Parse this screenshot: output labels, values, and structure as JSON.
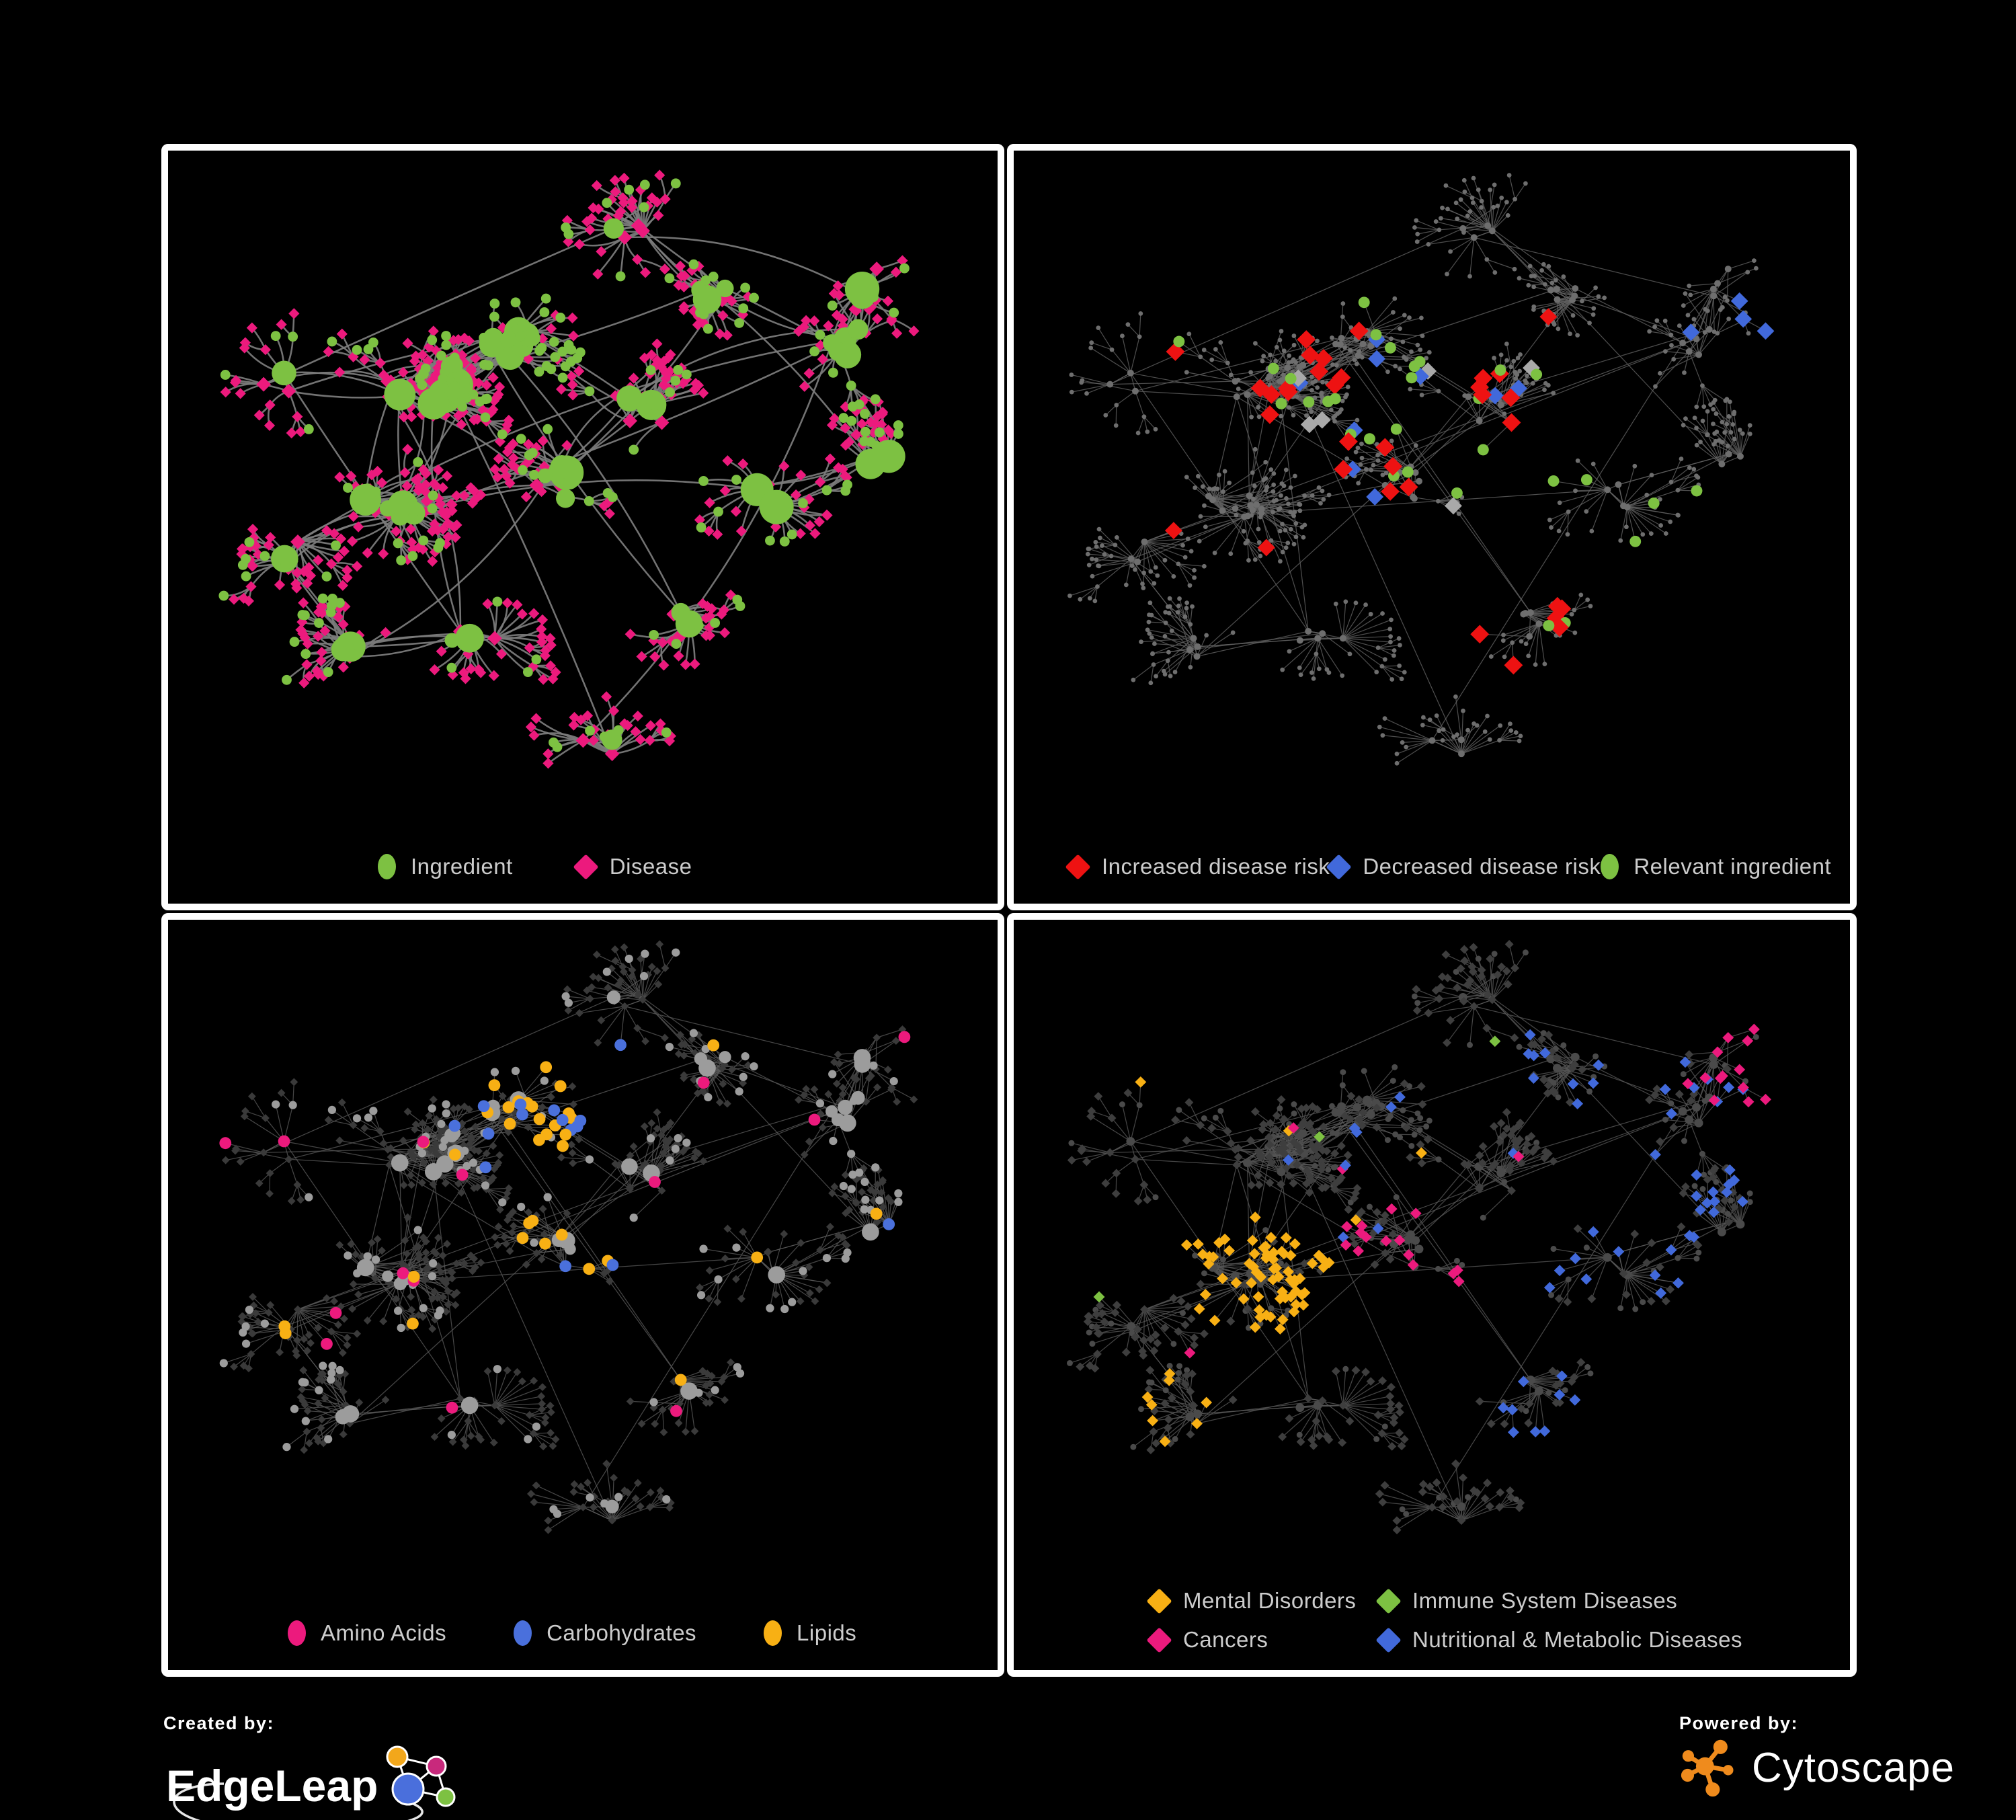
{
  "figure": {
    "background": "#000000",
    "panel_border": "#ffffff",
    "legend_text_color": "#cccccc"
  },
  "panels": [
    {
      "id": "ingredient-disease",
      "legend": [
        {
          "label": "Ingredient",
          "shape": "circle",
          "color": "#7dc142"
        },
        {
          "label": "Disease",
          "shape": "diamond",
          "color": "#ec1a7d"
        }
      ]
    },
    {
      "id": "disease-risk",
      "legend": [
        {
          "label": "Increased disease risk",
          "shape": "diamond",
          "color": "#ee1212"
        },
        {
          "label": "Decreased disease risk",
          "shape": "diamond",
          "color": "#4169db"
        },
        {
          "label": "Relevant ingredient",
          "shape": "circle",
          "color": "#7dc142"
        }
      ]
    },
    {
      "id": "nutrient-groups",
      "legend": [
        {
          "label": "Amino Acids",
          "shape": "circle",
          "color": "#ec1a7d"
        },
        {
          "label": "Carbohydrates",
          "shape": "circle",
          "color": "#4a70dc"
        },
        {
          "label": "Lipids",
          "shape": "circle",
          "color": "#f8b014"
        }
      ]
    },
    {
      "id": "disease-groups",
      "legend": [
        {
          "label": "Mental Disorders",
          "shape": "diamond",
          "color": "#f8b014"
        },
        {
          "label": "Immune System Diseases",
          "shape": "diamond",
          "color": "#7dc142"
        },
        {
          "label": "Cancers",
          "shape": "diamond",
          "color": "#ec1a7d"
        },
        {
          "label": "Nutritional & Metabolic Diseases",
          "shape": "diamond",
          "color": "#4169db"
        }
      ]
    }
  ],
  "footer": {
    "created_by_label": "Created by:",
    "created_by_brand": "EdgeLeap",
    "powered_by_label": "Powered by:",
    "powered_by_brand": "Cytoscape",
    "cytoscape_orange": "#ef8b1d",
    "edgeleap_node_colors": [
      "#f2a71b",
      "#c8297c",
      "#4a6fdc",
      "#7dc142"
    ]
  }
}
